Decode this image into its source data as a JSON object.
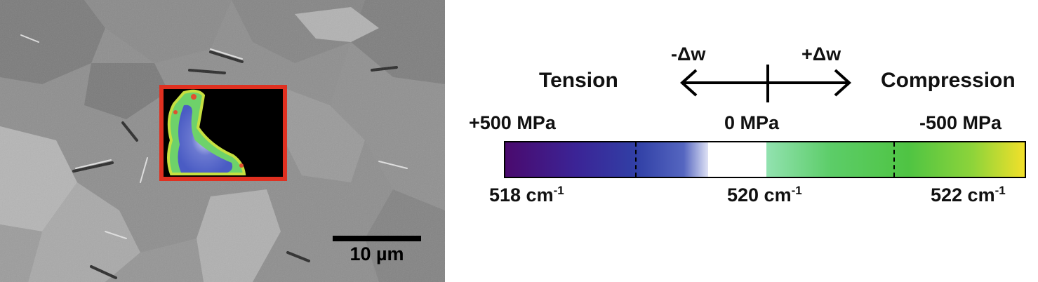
{
  "micrograph": {
    "scalebar_label": "10 µm"
  },
  "legend": {
    "shift_negative": "-Δw",
    "shift_positive": "+Δw",
    "tension_label": "Tension",
    "compression_label": "Compression",
    "stress_positive": "+500 MPa",
    "stress_zero": "0 MPa",
    "stress_negative": "-500 MPa",
    "wavenumber_low": "518 cm",
    "wavenumber_mid": "520 cm",
    "wavenumber_high": "522 cm",
    "wavenumber_exponent": "-1"
  },
  "colors": {
    "frame_red": "#e03020",
    "tension_purple": "#4a0a6e",
    "tension_blue": "#3140a6",
    "neutral_white": "#ffffff",
    "compression_green": "#50c443",
    "compression_yellow": "#f2e02a"
  }
}
